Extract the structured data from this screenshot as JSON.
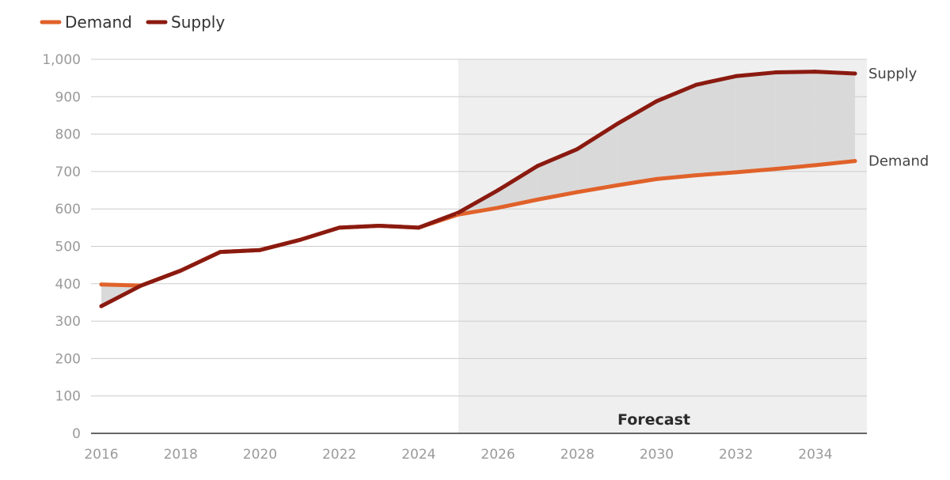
{
  "colors": {
    "demand": "#e0622a",
    "supply": "#8a1a10",
    "forecast_band": "#efefef",
    "gap_fill": "#d9d9d9",
    "grid": "#cccccc",
    "axis": "#333333",
    "tick_text": "#9a9a9a"
  },
  "legend": {
    "position": "top-left",
    "items": [
      {
        "key": "demand",
        "label": "Demand"
      },
      {
        "key": "supply",
        "label": "Supply"
      }
    ]
  },
  "forecast": {
    "label": "Forecast",
    "start_year": 2025
  },
  "chart_data": {
    "type": "line",
    "title": "",
    "xlabel": "",
    "ylabel": "",
    "xlim": [
      2016,
      2035
    ],
    "ylim": [
      0,
      1000
    ],
    "grid": true,
    "x": [
      2016,
      2017,
      2018,
      2019,
      2020,
      2021,
      2022,
      2023,
      2024,
      2025,
      2026,
      2027,
      2028,
      2029,
      2030,
      2031,
      2032,
      2033,
      2034,
      2035
    ],
    "x_tick_labels": [
      "2016",
      "2018",
      "2020",
      "2022",
      "2024",
      "2026",
      "2028",
      "2030",
      "2032",
      "2034"
    ],
    "y_tick_labels": [
      "0",
      "100",
      "200",
      "300",
      "400",
      "500",
      "600",
      "700",
      "800",
      "900",
      "1,000"
    ],
    "series": [
      {
        "name": "Demand",
        "key": "demand",
        "values": [
          398,
          395,
          435,
          485,
          490,
          517,
          550,
          555,
          550,
          585,
          603,
          625,
          645,
          663,
          680,
          690,
          698,
          707,
          717,
          728
        ]
      },
      {
        "name": "Supply",
        "key": "supply",
        "values": [
          340,
          395,
          435,
          485,
          490,
          517,
          550,
          555,
          550,
          590,
          650,
          715,
          760,
          827,
          888,
          932,
          955,
          965,
          967,
          962
        ]
      }
    ],
    "end_labels": [
      "Supply",
      "Demand"
    ],
    "shaded_gap": "between Supply and Demand"
  }
}
